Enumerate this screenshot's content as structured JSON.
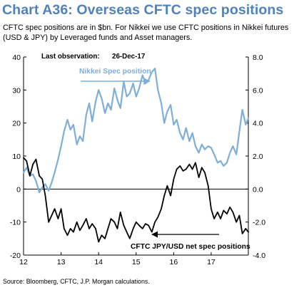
{
  "header": {
    "title": "Chart A36: Overseas CFTC spec positions",
    "subtitle": "CFTC spec positions are in $bn. For Nikkei we use CFTC positions in Nikkei futures (USD & JPY) by Leveraged funds and Asset managers."
  },
  "footer": {
    "source": "Source: Bloomberg, CFTC, J.P. Morgan calculations."
  },
  "colors": {
    "title": "#4f81bd",
    "nikkei": "#7faed8",
    "jpy": "#000000"
  },
  "chart_data": {
    "type": "line",
    "title": "",
    "xlabel": "",
    "ylabel": "",
    "x_range": [
      2012.0,
      2017.99
    ],
    "x_ticks": [
      {
        "value": 2012,
        "label": "12"
      },
      {
        "value": 2013,
        "label": "13"
      },
      {
        "value": 2014,
        "label": "14"
      },
      {
        "value": 2015,
        "label": "15"
      },
      {
        "value": 2016,
        "label": "16"
      },
      {
        "value": 2017,
        "label": "17"
      }
    ],
    "left_axis": {
      "range": [
        -20,
        40
      ],
      "ticks": [
        "40",
        "30",
        "20",
        "10",
        "0",
        "-10",
        "-20"
      ],
      "tick_values": [
        40,
        30,
        20,
        10,
        0,
        -10,
        -20
      ]
    },
    "right_axis": {
      "range": [
        -4,
        8
      ],
      "ticks": [
        "8.0",
        "6.0",
        "4.0",
        "2.0",
        "0.0",
        "-2.0",
        "-4.0"
      ],
      "tick_values": [
        8,
        6,
        4,
        2,
        0,
        -2,
        -4
      ]
    },
    "grid": false,
    "last_observation": {
      "label": "Last observation:",
      "value": "26-Dec-17"
    },
    "series": [
      {
        "name": "Nikkei Spec position",
        "axis": "right",
        "color": "#7faed8",
        "x": [
          2012.0,
          2012.08,
          2012.17,
          2012.25,
          2012.33,
          2012.42,
          2012.5,
          2012.58,
          2012.67,
          2012.75,
          2012.83,
          2012.92,
          2013.0,
          2013.08,
          2013.17,
          2013.25,
          2013.33,
          2013.42,
          2013.5,
          2013.58,
          2013.67,
          2013.75,
          2013.83,
          2013.92,
          2014.0,
          2014.08,
          2014.17,
          2014.25,
          2014.33,
          2014.42,
          2014.5,
          2014.58,
          2014.67,
          2014.75,
          2014.83,
          2014.92,
          2015.0,
          2015.08,
          2015.17,
          2015.25,
          2015.33,
          2015.42,
          2015.5,
          2015.58,
          2015.67,
          2015.75,
          2015.83,
          2015.92,
          2016.0,
          2016.08,
          2016.17,
          2016.25,
          2016.33,
          2016.42,
          2016.5,
          2016.58,
          2016.67,
          2016.75,
          2016.83,
          2016.92,
          2017.0,
          2017.08,
          2017.17,
          2017.25,
          2017.33,
          2017.42,
          2017.5,
          2017.58,
          2017.67,
          2017.75,
          2017.83,
          2017.92,
          2017.99
        ],
        "values": [
          1.0,
          1.3,
          0.8,
          0.9,
          0.5,
          -0.2,
          0.1,
          0.3,
          -0.1,
          0.4,
          1.0,
          1.8,
          2.6,
          3.5,
          4.2,
          3.6,
          3.9,
          2.7,
          3.2,
          2.9,
          4.5,
          5.2,
          4.1,
          5.3,
          6.0,
          5.5,
          4.6,
          5.2,
          4.8,
          6.1,
          5.4,
          4.9,
          6.5,
          5.6,
          5.8,
          6.4,
          5.6,
          6.1,
          6.9,
          6.4,
          6.6,
          7.1,
          7.3,
          6.0,
          5.2,
          4.0,
          4.7,
          5.1,
          3.9,
          4.2,
          3.4,
          3.0,
          3.7,
          2.9,
          3.4,
          2.6,
          2.2,
          2.7,
          2.4,
          2.6,
          2.5,
          2.1,
          1.6,
          1.7,
          1.4,
          1.6,
          2.2,
          2.6,
          2.1,
          3.5,
          4.8,
          3.9,
          4.3
        ]
      },
      {
        "name": "CFTC JPY/USD net spec positions",
        "axis": "left",
        "color": "#000000",
        "x": [
          2012.0,
          2012.08,
          2012.17,
          2012.25,
          2012.33,
          2012.42,
          2012.5,
          2012.58,
          2012.67,
          2012.75,
          2012.83,
          2012.92,
          2013.0,
          2013.08,
          2013.17,
          2013.25,
          2013.33,
          2013.42,
          2013.5,
          2013.58,
          2013.67,
          2013.75,
          2013.83,
          2013.92,
          2014.0,
          2014.08,
          2014.17,
          2014.25,
          2014.33,
          2014.42,
          2014.5,
          2014.58,
          2014.67,
          2014.75,
          2014.83,
          2014.92,
          2015.0,
          2015.08,
          2015.17,
          2015.25,
          2015.33,
          2015.42,
          2015.5,
          2015.58,
          2015.67,
          2015.75,
          2015.83,
          2015.92,
          2016.0,
          2016.08,
          2016.17,
          2016.25,
          2016.33,
          2016.42,
          2016.5,
          2016.58,
          2016.67,
          2016.75,
          2016.83,
          2016.92,
          2017.0,
          2017.08,
          2017.17,
          2017.25,
          2017.33,
          2017.42,
          2017.5,
          2017.58,
          2017.67,
          2017.75,
          2017.83,
          2017.92,
          2017.99
        ],
        "values": [
          9.5,
          8.5,
          4.0,
          7.5,
          9.0,
          4.0,
          3.0,
          -2.0,
          -10.0,
          -8.0,
          -6.0,
          -9.0,
          -6.0,
          -12.0,
          -14.0,
          -12.0,
          -13.0,
          -10.0,
          -12.5,
          -11.0,
          -9.0,
          -12.0,
          -10.5,
          -12.0,
          -16.0,
          -14.0,
          -15.0,
          -12.0,
          -9.0,
          -10.0,
          -12.0,
          -7.0,
          -11.0,
          -13.0,
          -15.0,
          -12.0,
          -10.0,
          -11.0,
          -12.0,
          -10.5,
          -11.0,
          -13.0,
          -10.0,
          -8.5,
          -6.0,
          -2.0,
          1.0,
          -2.0,
          3.0,
          6.0,
          7.0,
          5.5,
          6.0,
          7.5,
          6.0,
          8.0,
          3.5,
          6.5,
          5.0,
          1.0,
          -6.0,
          -9.0,
          -7.0,
          -9.0,
          -6.5,
          -7.5,
          -5.5,
          -7.0,
          -10.0,
          -8.0,
          -13.5,
          -12.0,
          -13.0
        ]
      }
    ],
    "annotations": [
      {
        "text": "Nikkei Spec position",
        "series": 0
      },
      {
        "text": "CFTC JPY/USD net spec positions",
        "series": 1
      }
    ]
  }
}
